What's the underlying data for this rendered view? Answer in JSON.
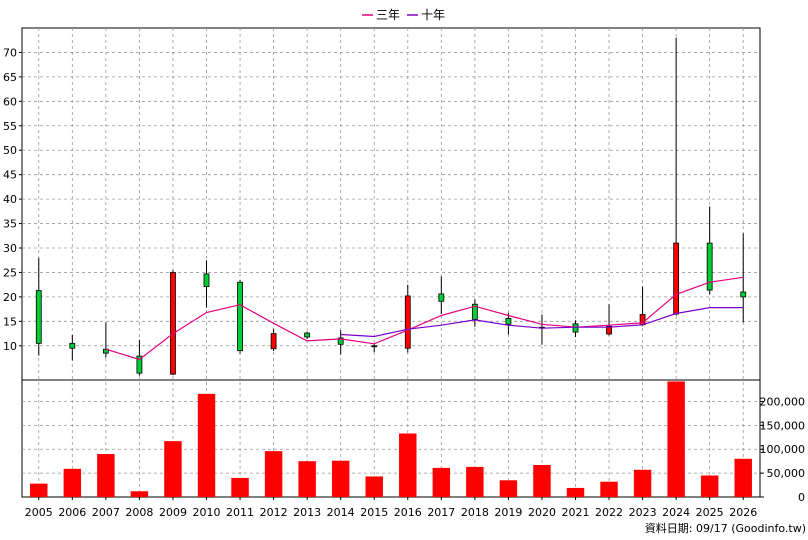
{
  "legend": [
    {
      "label": "三年",
      "color": "#e6007e"
    },
    {
      "label": "十年",
      "color": "#7a00cc"
    }
  ],
  "footer": "資料日期: 09/17  (Goodinfo.tw)",
  "colors": {
    "up": "#ff0000",
    "down": "#00cc33",
    "volume": "#ff0000",
    "grid": "#999999"
  },
  "chart_data": [
    {
      "type": "candlestick",
      "categories": [
        "2005",
        "2006",
        "2007",
        "2008",
        "2009",
        "2010",
        "2011",
        "2012",
        "2013",
        "2014",
        "2015",
        "2016",
        "2017",
        "2018",
        "2019",
        "2020",
        "2021",
        "2022",
        "2023",
        "2024",
        "2025",
        "2026"
      ],
      "yticks": [
        10,
        15,
        20,
        25,
        30,
        35,
        40,
        45,
        50,
        55,
        60,
        65,
        70
      ],
      "ylim": [
        3,
        75
      ],
      "grid": true,
      "candles": [
        {
          "year": "2005",
          "open": 10.5,
          "close": 21.3,
          "high": 28,
          "low": 8
        },
        {
          "year": "2006",
          "open": 9.5,
          "close": 10.5,
          "high": 12.2,
          "low": 7
        },
        {
          "year": "2007",
          "open": 8.5,
          "close": 9.3,
          "high": 14.8,
          "low": 7.6
        },
        {
          "year": "2008",
          "open": 4.4,
          "close": 7.9,
          "high": 11.2,
          "low": 3.9
        },
        {
          "year": "2009",
          "open": 25,
          "close": 4.2,
          "high": 25.5,
          "low": 4
        },
        {
          "year": "2010",
          "open": 22.1,
          "close": 24.7,
          "high": 27.5,
          "low": 17.8
        },
        {
          "year": "2011",
          "open": 9,
          "close": 23,
          "high": 23.5,
          "low": 8.4
        },
        {
          "year": "2012",
          "open": 12.5,
          "close": 9.4,
          "high": 13.5,
          "low": 8.9
        },
        {
          "year": "2013",
          "open": 11.8,
          "close": 12.6,
          "high": 12.9,
          "low": 11.4
        },
        {
          "year": "2014",
          "open": 10.3,
          "close": 11.6,
          "high": 13.2,
          "low": 8.2
        },
        {
          "year": "2015",
          "open": 10,
          "close": 9.8,
          "high": 10.5,
          "low": 8.7
        },
        {
          "year": "2016",
          "open": 20.2,
          "close": 9.5,
          "high": 22.5,
          "low": 8.6
        },
        {
          "year": "2017",
          "open": 19.1,
          "close": 20.6,
          "high": 24.2,
          "low": 16.5
        },
        {
          "year": "2018",
          "open": 15.4,
          "close": 18.5,
          "high": 19.5,
          "low": 13.9
        },
        {
          "year": "2019",
          "open": 14.4,
          "close": 15.6,
          "high": 16.7,
          "low": 12.3
        },
        {
          "year": "2020",
          "open": 13.8,
          "close": 13.8,
          "high": 16.4,
          "low": 10.2
        },
        {
          "year": "2021",
          "open": 12.8,
          "close": 14.5,
          "high": 15.2,
          "low": 11.8
        },
        {
          "year": "2022",
          "open": 14,
          "close": 12.4,
          "high": 18.5,
          "low": 12.1
        },
        {
          "year": "2023",
          "open": 16.4,
          "close": 14.3,
          "high": 22.1,
          "low": 14
        },
        {
          "year": "2024",
          "open": 31,
          "close": 16.5,
          "high": 73,
          "low": 16.2
        },
        {
          "year": "2025",
          "open": 21.4,
          "close": 31,
          "high": 38.5,
          "low": 20.5
        },
        {
          "year": "2026",
          "open": 20,
          "close": 21,
          "high": 33,
          "low": 14.8
        }
      ],
      "series": [
        {
          "name": "三年",
          "values": [
            null,
            null,
            9.3,
            7.2,
            12.5,
            16.8,
            18.4,
            14.6,
            11,
            11.4,
            10.4,
            13.2,
            16.2,
            18.1,
            16.2,
            14.4,
            13.8,
            14.2,
            14.7,
            20.5,
            23,
            24
          ]
        },
        {
          "name": "十年",
          "values": [
            null,
            null,
            null,
            null,
            null,
            null,
            null,
            null,
            null,
            12.3,
            11.9,
            13.4,
            14.2,
            15.3,
            14.2,
            13.6,
            13.8,
            13.8,
            14.3,
            16.6,
            17.8,
            17.8
          ]
        }
      ]
    },
    {
      "type": "bar",
      "categories": [
        "2005",
        "2006",
        "2007",
        "2008",
        "2009",
        "2010",
        "2011",
        "2012",
        "2013",
        "2014",
        "2015",
        "2016",
        "2017",
        "2018",
        "2019",
        "2020",
        "2021",
        "2022",
        "2023",
        "2024",
        "2025",
        "2026"
      ],
      "values": [
        28000,
        59000,
        90000,
        12000,
        117000,
        216000,
        40000,
        96000,
        75000,
        76000,
        43000,
        133000,
        61000,
        63000,
        35000,
        67000,
        19000,
        32000,
        57000,
        242000,
        45000,
        80000
      ],
      "yticks": [
        0,
        50000,
        100000,
        150000,
        200000
      ],
      "ytick_labels": [
        "0",
        "50,000",
        "100,000",
        "150,000",
        "200,000"
      ],
      "ylim": [
        0,
        245000
      ],
      "grid": true
    }
  ]
}
